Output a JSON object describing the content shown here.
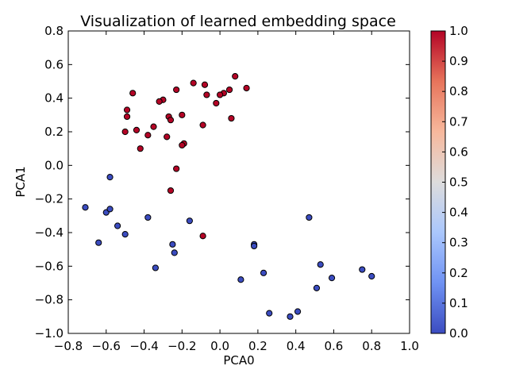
{
  "chart_data": {
    "type": "scatter",
    "title": "Visualization of learned embedding space",
    "xlabel": "PCA0",
    "ylabel": "PCA1",
    "xlim": [
      -0.8,
      1.0
    ],
    "ylim": [
      -1.0,
      0.8
    ],
    "xticks": [
      "−0.8",
      "−0.6",
      "−0.4",
      "−0.2",
      "0.0",
      "0.2",
      "0.4",
      "0.6",
      "0.8",
      "1.0"
    ],
    "yticks": [
      "−1.0",
      "−0.8",
      "−0.6",
      "−0.4",
      "−0.2",
      "0.0",
      "0.2",
      "0.4",
      "0.6",
      "0.8"
    ],
    "grid": false,
    "colormap": "coolwarm",
    "colorbar": {
      "range": [
        0.0,
        1.0
      ],
      "ticks": [
        "0.0",
        "0.1",
        "0.2",
        "0.3",
        "0.4",
        "0.5",
        "0.6",
        "0.7",
        "0.8",
        "0.9",
        "1.0"
      ],
      "stops": [
        "#3b4cc0",
        "#6f92f3",
        "#aac7fd",
        "#dddcdc",
        "#f7b89c",
        "#e7745b",
        "#b40426"
      ]
    },
    "series": [
      {
        "label_value": 1.0,
        "color": "#b40426",
        "points": [
          {
            "x": 0.08,
            "y": 0.53
          },
          {
            "x": -0.14,
            "y": 0.49
          },
          {
            "x": -0.08,
            "y": 0.48
          },
          {
            "x": 0.14,
            "y": 0.46
          },
          {
            "x": 0.05,
            "y": 0.45
          },
          {
            "x": -0.23,
            "y": 0.45
          },
          {
            "x": -0.46,
            "y": 0.43
          },
          {
            "x": 0.02,
            "y": 0.43
          },
          {
            "x": 0.0,
            "y": 0.42
          },
          {
            "x": -0.07,
            "y": 0.42
          },
          {
            "x": -0.3,
            "y": 0.39
          },
          {
            "x": -0.32,
            "y": 0.38
          },
          {
            "x": -0.02,
            "y": 0.37
          },
          {
            "x": -0.49,
            "y": 0.33
          },
          {
            "x": -0.2,
            "y": 0.3
          },
          {
            "x": -0.27,
            "y": 0.29
          },
          {
            "x": -0.49,
            "y": 0.29
          },
          {
            "x": 0.06,
            "y": 0.28
          },
          {
            "x": -0.26,
            "y": 0.27
          },
          {
            "x": -0.09,
            "y": 0.24
          },
          {
            "x": -0.35,
            "y": 0.23
          },
          {
            "x": -0.44,
            "y": 0.21
          },
          {
            "x": -0.5,
            "y": 0.2
          },
          {
            "x": -0.38,
            "y": 0.18
          },
          {
            "x": -0.28,
            "y": 0.17
          },
          {
            "x": -0.19,
            "y": 0.13
          },
          {
            "x": -0.2,
            "y": 0.12
          },
          {
            "x": -0.42,
            "y": 0.1
          },
          {
            "x": -0.23,
            "y": -0.02
          },
          {
            "x": -0.26,
            "y": -0.15
          },
          {
            "x": -0.09,
            "y": -0.42
          }
        ]
      },
      {
        "label_value": 0.0,
        "color": "#3b4cc0",
        "points": [
          {
            "x": -0.58,
            "y": -0.07
          },
          {
            "x": -0.71,
            "y": -0.25
          },
          {
            "x": -0.6,
            "y": -0.28
          },
          {
            "x": -0.58,
            "y": -0.26
          },
          {
            "x": -0.38,
            "y": -0.31
          },
          {
            "x": 0.47,
            "y": -0.31
          },
          {
            "x": -0.16,
            "y": -0.33
          },
          {
            "x": -0.54,
            "y": -0.36
          },
          {
            "x": -0.5,
            "y": -0.41
          },
          {
            "x": -0.64,
            "y": -0.46
          },
          {
            "x": 0.18,
            "y": -0.47
          },
          {
            "x": -0.25,
            "y": -0.47
          },
          {
            "x": 0.18,
            "y": -0.48
          },
          {
            "x": -0.24,
            "y": -0.52
          },
          {
            "x": 0.53,
            "y": -0.59
          },
          {
            "x": -0.34,
            "y": -0.61
          },
          {
            "x": 0.75,
            "y": -0.62
          },
          {
            "x": 0.23,
            "y": -0.64
          },
          {
            "x": 0.8,
            "y": -0.66
          },
          {
            "x": 0.59,
            "y": -0.67
          },
          {
            "x": 0.11,
            "y": -0.68
          },
          {
            "x": 0.51,
            "y": -0.73
          },
          {
            "x": 0.41,
            "y": -0.87
          },
          {
            "x": 0.26,
            "y": -0.88
          },
          {
            "x": 0.37,
            "y": -0.9
          }
        ]
      }
    ]
  }
}
